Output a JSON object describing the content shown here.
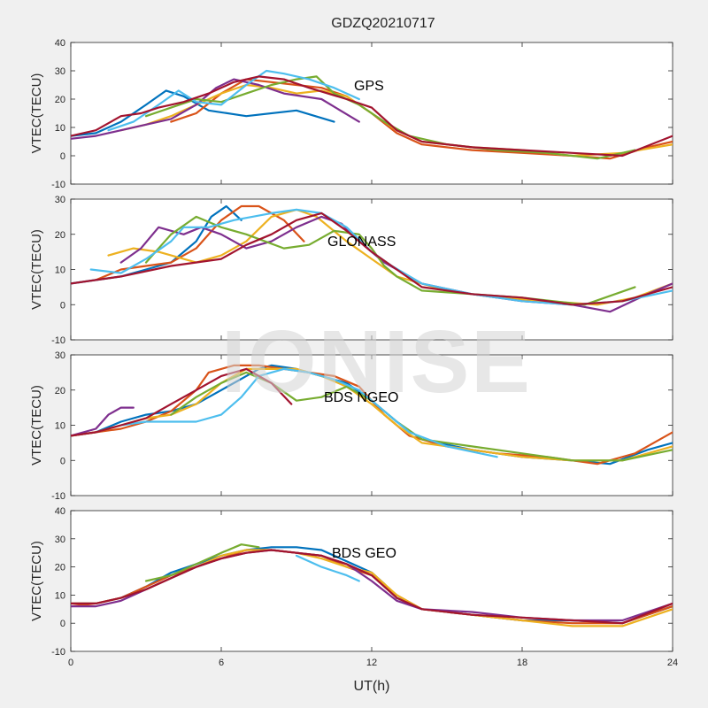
{
  "figure": {
    "title": "GDZQ20210717",
    "xlabel": "UT(h)",
    "watermark": "IONISE"
  },
  "colors": [
    "#0072BD",
    "#D95319",
    "#EDB120",
    "#7E2F8E",
    "#77AC30",
    "#4DBEEE",
    "#A2142F"
  ],
  "chart_data": [
    {
      "type": "line",
      "label": "GPS",
      "ylabel": "VTEC(TECU)",
      "xlim": [
        0,
        24
      ],
      "ylim": [
        -10,
        40
      ],
      "xticks": [
        0,
        6,
        12,
        18,
        24
      ],
      "yticks": [
        -10,
        0,
        10,
        20,
        30,
        40
      ],
      "series": [
        {
          "x": [
            0,
            1,
            2,
            3,
            3.8,
            4.5,
            5.5,
            7,
            9,
            10.5
          ],
          "y": [
            7,
            8,
            12,
            18,
            23,
            21,
            16,
            14,
            16,
            12
          ]
        },
        {
          "x": [
            4,
            5,
            6,
            7,
            8,
            9,
            10,
            11,
            12,
            13,
            14,
            16,
            18,
            20,
            21.5,
            23,
            24
          ],
          "y": [
            12,
            15,
            22,
            27,
            26,
            25,
            24,
            21,
            15,
            8,
            4,
            2,
            1,
            0,
            -1,
            3,
            5
          ]
        },
        {
          "x": [
            2,
            3,
            4,
            5,
            6,
            7,
            8,
            9,
            10,
            11,
            12,
            13,
            14,
            16,
            18,
            20,
            22,
            24
          ],
          "y": [
            9,
            11,
            14,
            18,
            22,
            25,
            24,
            22,
            23,
            21,
            15,
            9,
            5,
            3,
            2,
            0,
            1,
            4
          ]
        },
        {
          "x": [
            0,
            1,
            2,
            3,
            4,
            5,
            5.8,
            6.5,
            7.5,
            8.5,
            10,
            11.5
          ],
          "y": [
            6,
            7,
            9,
            11,
            13,
            18,
            24,
            27,
            25,
            22,
            20,
            12
          ]
        },
        {
          "x": [
            3,
            4,
            5,
            6,
            7,
            8,
            9,
            9.8,
            10.5,
            11.5,
            12.5,
            13.5,
            15,
            17,
            19,
            21,
            22.5
          ],
          "y": [
            14,
            17,
            20,
            19,
            22,
            25,
            27,
            28,
            22,
            18,
            12,
            7,
            4,
            2,
            1,
            -1,
            2
          ]
        },
        {
          "x": [
            1.5,
            2.5,
            3.5,
            4.3,
            5,
            6,
            7,
            7.8,
            8.5,
            9.5,
            10.5,
            11.5
          ],
          "y": [
            9,
            12,
            18,
            23,
            19,
            18,
            25,
            30,
            29,
            27,
            24,
            20
          ]
        },
        {
          "x": [
            0,
            1,
            2,
            2.8,
            3.5,
            4.5,
            5.5,
            6.5,
            7.5,
            8.5,
            9.5,
            11,
            12,
            13,
            14,
            16,
            18,
            20,
            22,
            24
          ],
          "y": [
            7,
            9,
            14,
            15,
            17,
            19,
            22,
            26,
            28,
            27,
            24,
            20,
            17,
            9,
            5,
            3,
            2,
            1,
            0,
            7
          ]
        }
      ]
    },
    {
      "type": "line",
      "label": "GLONASS",
      "ylabel": "VTEC(TECU)",
      "xlim": [
        0,
        24
      ],
      "ylim": [
        -10,
        30
      ],
      "xticks": [
        0,
        6,
        12,
        18,
        24
      ],
      "yticks": [
        -10,
        0,
        10,
        20,
        30
      ],
      "series": [
        {
          "x": [
            0,
            1,
            2,
            3,
            4,
            5,
            5.6,
            6.2,
            6.8
          ],
          "y": [
            6,
            7,
            8,
            10,
            12,
            18,
            25,
            28,
            24
          ]
        },
        {
          "x": [
            1,
            2,
            3,
            4,
            5,
            6,
            6.8,
            7.5,
            8.5,
            9.3
          ],
          "y": [
            7,
            10,
            11,
            12,
            16,
            24,
            28,
            28,
            24,
            18
          ]
        },
        {
          "x": [
            1.5,
            2.5,
            3.5,
            5,
            6,
            7,
            8,
            9,
            9.8,
            11,
            12,
            13,
            15,
            17,
            19,
            21,
            22.5,
            24
          ],
          "y": [
            14,
            16,
            15,
            12,
            14,
            18,
            25,
            27,
            25,
            18,
            13,
            8,
            4,
            2,
            1,
            0,
            2,
            6
          ]
        },
        {
          "x": [
            2,
            2.8,
            3.5,
            4.5,
            5.2,
            6,
            7,
            8,
            9,
            10,
            10.8,
            11.5,
            12.5,
            14,
            16,
            18,
            20,
            21.5,
            23,
            24
          ],
          "y": [
            12,
            16,
            22,
            20,
            22,
            20,
            16,
            18,
            22,
            25,
            23,
            18,
            12,
            6,
            3,
            1,
            0,
            -2,
            3,
            6
          ]
        },
        {
          "x": [
            3,
            4,
            5,
            6,
            7,
            8.5,
            9.5,
            10.5,
            11.5,
            12,
            12.5,
            13,
            14,
            16,
            18,
            20.5,
            22.5
          ],
          "y": [
            12,
            20,
            25,
            22,
            20,
            16,
            17,
            21,
            20,
            16,
            11,
            8,
            4,
            3,
            2,
            0,
            5
          ]
        },
        {
          "x": [
            0.8,
            2,
            3,
            4,
            4.5,
            5.5,
            6.5,
            8,
            9,
            10,
            11,
            12,
            12.8,
            14,
            16,
            18,
            20,
            22,
            24
          ],
          "y": [
            10,
            9,
            13,
            18,
            22,
            22,
            24,
            26,
            27,
            26,
            22,
            15,
            11,
            6,
            3,
            1,
            0,
            1,
            4
          ]
        },
        {
          "x": [
            0,
            1,
            2,
            4,
            6,
            7,
            8,
            9,
            10,
            11,
            12,
            13,
            14,
            16,
            18,
            20,
            22,
            24
          ],
          "y": [
            6,
            7,
            8,
            11,
            13,
            17,
            20,
            24,
            26,
            21,
            15,
            10,
            5,
            3,
            2,
            0,
            1,
            5
          ]
        }
      ]
    },
    {
      "type": "line",
      "label": "BDS NGEO",
      "ylabel": "VTEC(TECU)",
      "xlim": [
        0,
        24
      ],
      "ylim": [
        -10,
        30
      ],
      "xticks": [
        0,
        6,
        12,
        18,
        24
      ],
      "yticks": [
        -10,
        0,
        10,
        20,
        30
      ],
      "series": [
        {
          "x": [
            0,
            1,
            2,
            3,
            4,
            5,
            6,
            7,
            7.5,
            8,
            9,
            10,
            11,
            12,
            13,
            14,
            16,
            18,
            20,
            21.5,
            23,
            24
          ],
          "y": [
            7,
            8,
            11,
            13,
            14,
            16,
            20,
            24,
            26,
            27,
            26,
            24,
            22,
            17,
            11,
            6,
            3,
            1,
            0,
            -1,
            3,
            5
          ]
        },
        {
          "x": [
            0,
            1,
            2,
            3,
            4,
            5,
            5.5,
            6.5,
            7.5,
            8.5,
            9.5,
            10.5,
            11.5,
            12.5,
            13.5,
            15,
            17,
            19,
            21,
            22.5,
            24
          ],
          "y": [
            7,
            8,
            9,
            11,
            14,
            20,
            25,
            27,
            27,
            26,
            25,
            24,
            21,
            13,
            7,
            4,
            2,
            1,
            -1,
            2,
            8
          ]
        },
        {
          "x": [
            0,
            1,
            2,
            3,
            4,
            5,
            6,
            7,
            8,
            9,
            10,
            11,
            12,
            13,
            14,
            16,
            18,
            20,
            22,
            24
          ],
          "y": [
            7,
            8,
            10,
            12,
            13,
            16,
            22,
            26,
            26,
            26,
            24,
            21,
            16,
            10,
            5,
            3,
            1,
            0,
            0,
            4
          ]
        },
        {
          "x": [
            0,
            1,
            1.5,
            2,
            2.5
          ],
          "y": [
            7,
            9,
            13,
            15,
            15
          ]
        },
        {
          "x": [
            4,
            5,
            6,
            7,
            8,
            9,
            10,
            11,
            12,
            13,
            14,
            16,
            18,
            20,
            22,
            24
          ],
          "y": [
            13,
            18,
            22,
            25,
            22,
            17,
            18,
            21,
            17,
            11,
            6,
            4,
            2,
            0,
            0,
            3
          ]
        },
        {
          "x": [
            2,
            3,
            4,
            5,
            6,
            6.8,
            7.5,
            8.5,
            9.5,
            10.5,
            11.5,
            12.5,
            13.5,
            15,
            17
          ],
          "y": [
            10,
            11,
            11,
            11,
            13,
            18,
            24,
            26,
            25,
            23,
            20,
            14,
            8,
            4,
            1
          ]
        },
        {
          "x": [
            0,
            1,
            2,
            3,
            4,
            5,
            6,
            7,
            8,
            8.8
          ],
          "y": [
            7,
            8,
            10,
            12,
            16,
            20,
            24,
            26,
            22,
            16
          ]
        }
      ]
    },
    {
      "type": "line",
      "label": "BDS GEO",
      "ylabel": "VTEC(TECU)",
      "xlim": [
        0,
        24
      ],
      "ylim": [
        -10,
        40
      ],
      "xticks": [
        0,
        6,
        12,
        18,
        24
      ],
      "yticks": [
        -10,
        0,
        10,
        20,
        30,
        40
      ],
      "series": [
        {
          "x": [
            0,
            1,
            2,
            3,
            4,
            5,
            6,
            7,
            8,
            9,
            10,
            11,
            12,
            12.5,
            13,
            14,
            16,
            18,
            20,
            22,
            24
          ],
          "y": [
            7,
            7,
            9,
            13,
            18,
            21,
            24,
            26,
            27,
            27,
            26,
            22,
            18,
            14,
            9,
            5,
            3,
            1,
            1,
            0,
            6
          ]
        },
        {
          "x": [
            0,
            1,
            2,
            3,
            4,
            5,
            6,
            7,
            8,
            9,
            10,
            11,
            12,
            13,
            14,
            16,
            18,
            20,
            22,
            24
          ],
          "y": [
            6,
            7,
            9,
            13,
            17,
            20,
            23,
            26,
            26,
            25,
            24,
            20,
            17,
            10,
            5,
            3,
            1,
            0,
            0,
            6
          ]
        },
        {
          "x": [
            0,
            1,
            2,
            3,
            4,
            5,
            6,
            7,
            8,
            9,
            10,
            11,
            12,
            13,
            14,
            16,
            18,
            20,
            22,
            24
          ],
          "y": [
            7,
            7,
            9,
            12,
            16,
            20,
            24,
            26,
            26,
            25,
            23,
            20,
            18,
            10,
            5,
            3,
            1,
            -1,
            -1,
            5
          ]
        },
        {
          "x": [
            0,
            1,
            2,
            3,
            4,
            5,
            6,
            7,
            8,
            9,
            10,
            11,
            12,
            13,
            14,
            16,
            18,
            20,
            22,
            24
          ],
          "y": [
            6,
            6,
            8,
            12,
            16,
            20,
            23,
            25,
            26,
            25,
            24,
            21,
            15,
            8,
            5,
            4,
            2,
            1,
            1,
            7
          ]
        },
        {
          "x": [
            3,
            4,
            5,
            6,
            6.8,
            7.5
          ],
          "y": [
            15,
            17,
            21,
            25,
            28,
            27
          ]
        },
        {
          "x": [
            9,
            10,
            11,
            11.5
          ],
          "y": [
            24,
            20,
            17,
            15
          ]
        },
        {
          "x": [
            0,
            1,
            2,
            3,
            4,
            5,
            6,
            7,
            8,
            9,
            10,
            11,
            12,
            13,
            14,
            16,
            18,
            20,
            22,
            24
          ],
          "y": [
            7,
            7,
            9,
            12,
            16,
            20,
            23,
            25,
            26,
            25,
            24,
            21,
            17,
            9,
            5,
            3,
            2,
            1,
            0,
            7
          ]
        }
      ]
    }
  ]
}
